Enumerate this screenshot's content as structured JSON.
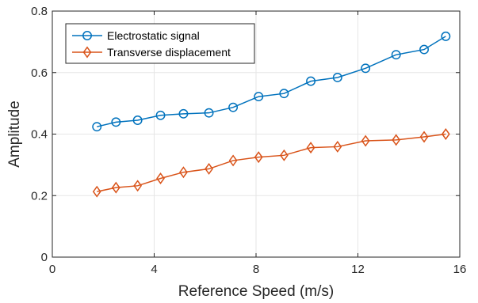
{
  "chart_data": {
    "type": "line",
    "xlabel": "Reference Speed (m/s)",
    "ylabel": "Amplitude",
    "xlim": [
      0,
      16
    ],
    "ylim": [
      0,
      0.8
    ],
    "xticks": [
      0,
      4,
      8,
      12,
      16
    ],
    "yticks": [
      0,
      0.2,
      0.4,
      0.6,
      0.8
    ],
    "xtick_labels": [
      "0",
      "4",
      "8",
      "12",
      "16"
    ],
    "ytick_labels": [
      "0",
      "0.2",
      "0.4",
      "0.6",
      "0.8"
    ],
    "grid": true,
    "legend_position": "top-left",
    "series": [
      {
        "name": "Electrostatic signal",
        "color": "#0072BD",
        "marker": "circle",
        "x": [
          1.75,
          2.5,
          3.35,
          4.25,
          5.15,
          6.15,
          7.1,
          8.1,
          9.1,
          10.15,
          11.2,
          12.3,
          13.5,
          14.6,
          15.45
        ],
        "y": [
          0.424,
          0.439,
          0.445,
          0.461,
          0.466,
          0.469,
          0.487,
          0.522,
          0.532,
          0.572,
          0.584,
          0.614,
          0.658,
          0.675,
          0.718
        ]
      },
      {
        "name": "Transverse displacement",
        "color": "#D95319",
        "marker": "diamond",
        "x": [
          1.75,
          2.5,
          3.35,
          4.25,
          5.15,
          6.15,
          7.1,
          8.1,
          9.1,
          10.15,
          11.2,
          12.3,
          13.5,
          14.6,
          15.45
        ],
        "y": [
          0.213,
          0.226,
          0.232,
          0.256,
          0.276,
          0.287,
          0.314,
          0.325,
          0.331,
          0.356,
          0.359,
          0.378,
          0.381,
          0.391,
          0.4
        ]
      }
    ]
  }
}
